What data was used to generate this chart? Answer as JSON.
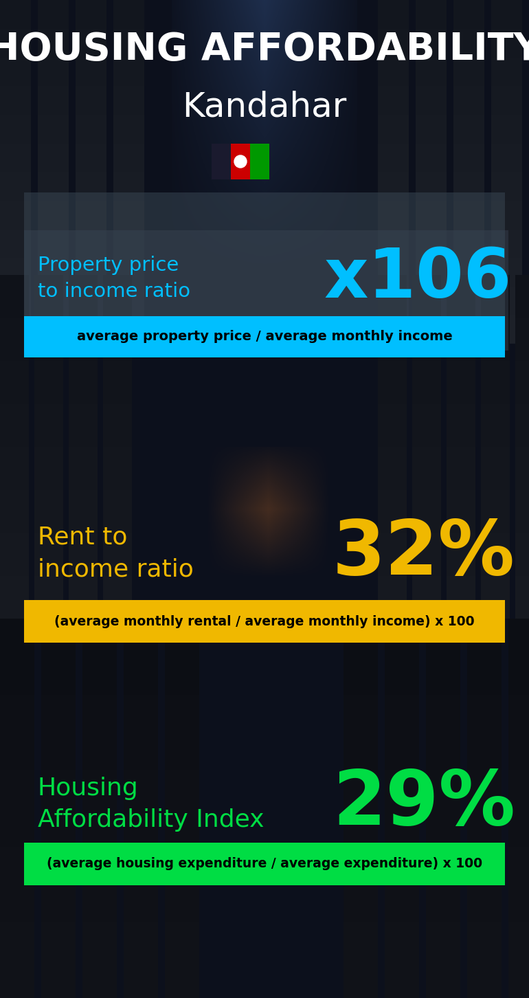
{
  "title_line1": "HOUSING AFFORDABILITY",
  "title_line2": "Kandahar",
  "bg_color": "#0a0e1a",
  "section1_label": "Property price\nto income ratio",
  "section1_value": "x106",
  "section1_label_color": "#00bfff",
  "section1_value_color": "#00bfff",
  "section1_band_text": "average property price / average monthly income",
  "section1_band_bg": "#00bfff",
  "section1_band_text_color": "#000000",
  "section2_label": "Rent to\nincome ratio",
  "section2_value": "32%",
  "section2_label_color": "#f0b800",
  "section2_value_color": "#f0b800",
  "section2_band_text": "(average monthly rental / average monthly income) x 100",
  "section2_band_bg": "#f0b800",
  "section2_band_text_color": "#000000",
  "section3_label": "Housing\nAffordability Index",
  "section3_value": "29%",
  "section3_label_color": "#00dd44",
  "section3_value_color": "#00dd44",
  "section3_band_text": "(average housing expenditure / average expenditure) x 100",
  "section3_band_bg": "#00dd44",
  "section3_band_text_color": "#000000",
  "title_color": "#ffffff",
  "city_color": "#ffffff",
  "flag_black": "#1a1a2e",
  "flag_red": "#cc0000",
  "flag_green": "#009900",
  "fig_width": 7.7,
  "fig_height": 14.52,
  "dpi": 100
}
